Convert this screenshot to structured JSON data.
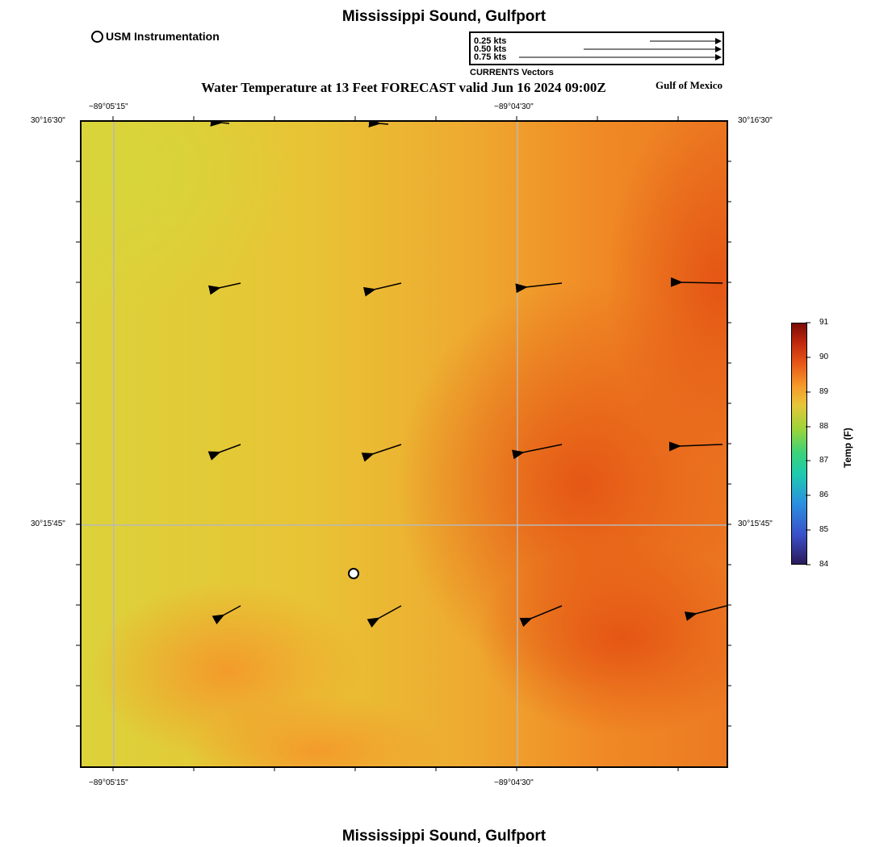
{
  "header": {
    "title": "Mississippi Sound, Gulfport",
    "subtitle": "Water Temperature at 13 Feet FORECAST valid Jun 16 2024 09:00Z",
    "region": "Gulf of Mexico",
    "footer_title": "Mississippi Sound, Gulfport"
  },
  "legend": {
    "station_label": "USM Instrumentation",
    "vector_caption": "CURRENTS Vectors",
    "vector_scale": [
      {
        "label": "0.25 kts",
        "speed": 0.25
      },
      {
        "label": "0.50 kts",
        "speed": 0.5
      },
      {
        "label": "0.75 kts",
        "speed": 0.75
      }
    ]
  },
  "axes": {
    "lon_ticks": [
      "−89°05'15\"",
      "−89°04'30\""
    ],
    "lat_ticks": [
      "30°16'30\"",
      "30°15'45\""
    ]
  },
  "colorbar": {
    "title": "Temp (F)",
    "min": 84,
    "max": 91,
    "tick_labels": [
      "91",
      "90",
      "89",
      "88",
      "87",
      "86",
      "85",
      "84"
    ],
    "colors": [
      "#2b1a5a",
      "#3a4fc8",
      "#2b8fe0",
      "#1ec9b0",
      "#3ad27a",
      "#9bd43a",
      "#e6c63a",
      "#f59a2a",
      "#e85a18",
      "#c0280e",
      "#7a0a06"
    ]
  },
  "field_colors": {
    "cool": "#dcd23a",
    "mid": "#e8c435",
    "warm": "#f59a2a",
    "hot": "#e45c18"
  },
  "station_marker": "usm-instrumentation-marker"
}
